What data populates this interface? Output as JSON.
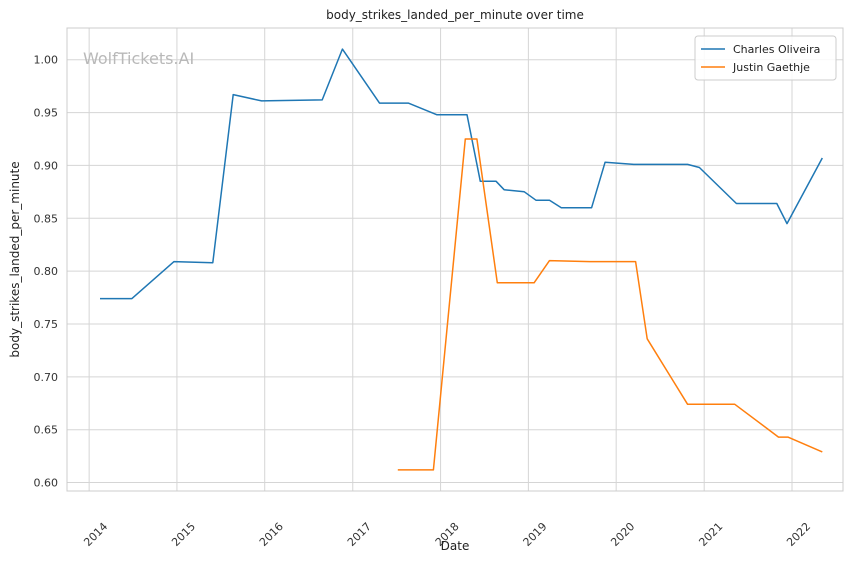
{
  "chart_data": {
    "type": "line",
    "title": "body_strikes_landed_per_minute over time",
    "xlabel": "Date",
    "ylabel": "body_strikes_landed_per_minute",
    "watermark": "WolfTickets.AI",
    "xlim": [
      "2013-10-01",
      "2022-08-01"
    ],
    "ylim": [
      0.592,
      1.03
    ],
    "x_ticks": [
      "2014",
      "2015",
      "2016",
      "2017",
      "2018",
      "2019",
      "2020",
      "2021",
      "2022"
    ],
    "y_ticks": [
      0.6,
      0.65,
      0.7,
      0.75,
      0.8,
      0.85,
      0.9,
      0.95,
      1.0
    ],
    "grid": true,
    "legend_position": "top-right",
    "series": [
      {
        "name": "Charles Oliveira",
        "color": "#1f77b4",
        "points": [
          [
            "2014-02-15",
            0.774
          ],
          [
            "2014-06-28",
            0.774
          ],
          [
            "2014-12-20",
            0.809
          ],
          [
            "2015-05-30",
            0.808
          ],
          [
            "2015-08-23",
            0.967
          ],
          [
            "2015-12-19",
            0.961
          ],
          [
            "2016-08-27",
            0.962
          ],
          [
            "2016-11-19",
            1.01
          ],
          [
            "2017-04-22",
            0.959
          ],
          [
            "2017-08-20",
            0.959
          ],
          [
            "2017-12-16",
            0.948
          ],
          [
            "2018-04-21",
            0.948
          ],
          [
            "2018-06-15",
            0.885
          ],
          [
            "2018-08-20",
            0.885
          ],
          [
            "2018-09-22",
            0.877
          ],
          [
            "2018-12-15",
            0.875
          ],
          [
            "2019-02-02",
            0.867
          ],
          [
            "2019-03-30",
            0.867
          ],
          [
            "2019-05-18",
            0.86
          ],
          [
            "2019-09-21",
            0.86
          ],
          [
            "2019-11-16",
            0.903
          ],
          [
            "2020-03-14",
            0.901
          ],
          [
            "2020-10-24",
            0.901
          ],
          [
            "2020-12-12",
            0.898
          ],
          [
            "2021-05-15",
            0.864
          ],
          [
            "2021-10-30",
            0.864
          ],
          [
            "2021-12-11",
            0.845
          ],
          [
            "2022-05-07",
            0.907
          ]
        ]
      },
      {
        "name": "Justin Gaethje",
        "color": "#ff7f0e",
        "points": [
          [
            "2017-07-07",
            0.612
          ],
          [
            "2017-12-02",
            0.612
          ],
          [
            "2018-04-14",
            0.925
          ],
          [
            "2018-06-01",
            0.925
          ],
          [
            "2018-08-25",
            0.789
          ],
          [
            "2019-01-25",
            0.789
          ],
          [
            "2019-03-30",
            0.81
          ],
          [
            "2019-09-14",
            0.809
          ],
          [
            "2020-03-22",
            0.809
          ],
          [
            "2020-05-09",
            0.736
          ],
          [
            "2020-10-24",
            0.674
          ],
          [
            "2021-05-08",
            0.674
          ],
          [
            "2021-11-06",
            0.643
          ],
          [
            "2021-12-15",
            0.643
          ],
          [
            "2022-05-07",
            0.629
          ]
        ]
      }
    ]
  }
}
